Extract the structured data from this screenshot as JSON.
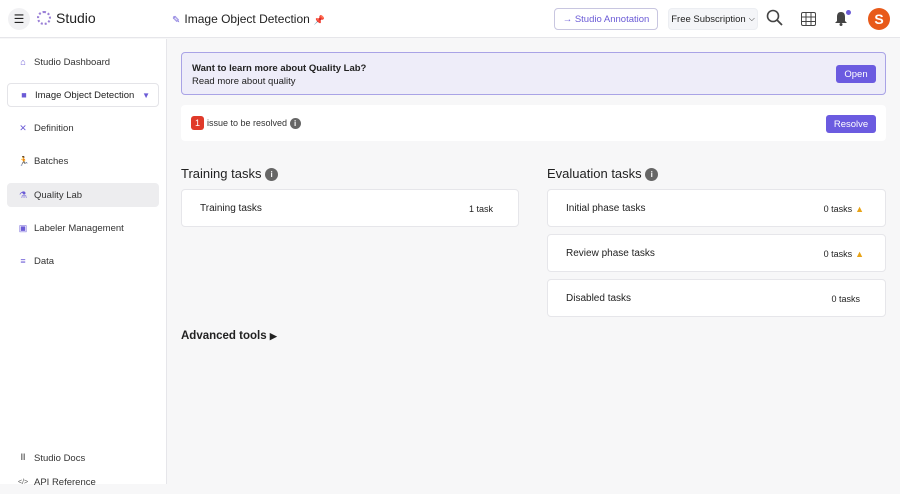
{
  "header": {
    "app_name": "Studio",
    "project_title": "Image Object Detection",
    "studio_annotation": "Studio Annotation",
    "subscription": "Free Subscription",
    "avatar_letter": "S"
  },
  "sidebar": {
    "items": [
      {
        "label": "Studio Dashboard",
        "icon": "home-icon"
      },
      {
        "label": "Image Object Detection",
        "icon": "folder-icon"
      },
      {
        "label": "Definition",
        "icon": "tools-icon"
      },
      {
        "label": "Batches",
        "icon": "running-icon"
      },
      {
        "label": "Quality Lab",
        "icon": "flask-icon"
      },
      {
        "label": "Labeler Management",
        "icon": "id-badge-icon"
      },
      {
        "label": "Data",
        "icon": "database-icon"
      }
    ],
    "footer": [
      {
        "label": "Studio Docs",
        "icon": "books-icon"
      },
      {
        "label": "API Reference",
        "icon": "code-icon"
      }
    ]
  },
  "banner": {
    "title": "Want to learn more about Quality Lab?",
    "subtitle": "Read more about quality",
    "button": "Open"
  },
  "issues": {
    "count": "1",
    "text": "issue to be resolved",
    "button": "Resolve"
  },
  "training": {
    "title": "Training tasks",
    "cards": [
      {
        "label": "Training tasks",
        "value": "1 task"
      }
    ]
  },
  "evaluation": {
    "title": "Evaluation tasks",
    "cards": [
      {
        "label": "Initial phase tasks",
        "value": "0 tasks",
        "warning": true
      },
      {
        "label": "Review phase tasks",
        "value": "0 tasks",
        "warning": true
      },
      {
        "label": "Disabled tasks",
        "value": "0 tasks",
        "warning": false
      }
    ]
  },
  "advanced": {
    "label": "Advanced tools"
  },
  "colors": {
    "accent": "#6b5be0",
    "issue": "#e03a2a",
    "warning": "#e8a317",
    "avatar": "#e85a1a"
  }
}
